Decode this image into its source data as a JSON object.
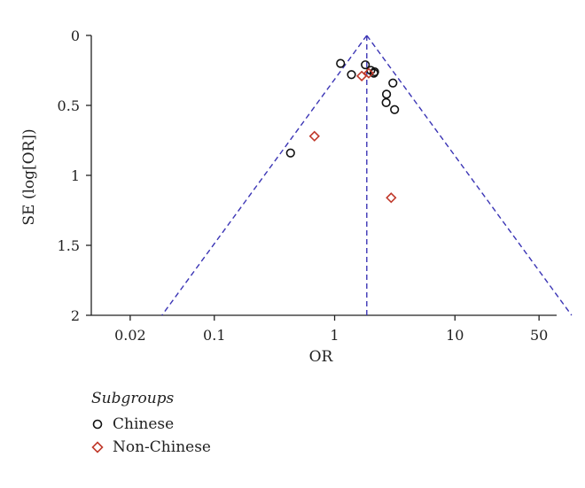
{
  "chart_data": {
    "type": "scatter",
    "title": "",
    "xlabel": "OR",
    "ylabel": "SE (log[OR])",
    "x_scale": "log",
    "xlim": [
      0.0095,
      70
    ],
    "ylim": [
      0,
      2
    ],
    "y_inverted": true,
    "x_ticks": [
      {
        "value": 0.02,
        "label": "0.02"
      },
      {
        "value": 0.1,
        "label": "0.1"
      },
      {
        "value": 1,
        "label": "1"
      },
      {
        "value": 10,
        "label": "10"
      },
      {
        "value": 50,
        "label": "50"
      }
    ],
    "y_ticks": [
      {
        "value": 0,
        "label": "0"
      },
      {
        "value": 0.5,
        "label": "0.5"
      },
      {
        "value": 1,
        "label": "1"
      },
      {
        "value": 1.5,
        "label": "1.5"
      },
      {
        "value": 2,
        "label": "2"
      }
    ],
    "pooled_or": 1.85,
    "funnel_color": "#3b35b5",
    "legend": {
      "title": "Subgroups",
      "placement": "bottom-left",
      "entries": [
        "Chinese",
        "Non-Chinese"
      ]
    },
    "series": [
      {
        "name": "Chinese",
        "marker": "circle",
        "color": "#111111",
        "points": [
          {
            "x": 1.12,
            "y": 0.2
          },
          {
            "x": 1.38,
            "y": 0.28
          },
          {
            "x": 1.8,
            "y": 0.21
          },
          {
            "x": 2.0,
            "y": 0.25
          },
          {
            "x": 2.12,
            "y": 0.27
          },
          {
            "x": 2.15,
            "y": 0.26
          },
          {
            "x": 3.05,
            "y": 0.34
          },
          {
            "x": 2.7,
            "y": 0.42
          },
          {
            "x": 2.68,
            "y": 0.48
          },
          {
            "x": 3.15,
            "y": 0.53
          },
          {
            "x": 0.43,
            "y": 0.84
          }
        ]
      },
      {
        "name": "Non-Chinese",
        "marker": "diamond",
        "color": "#c0392b",
        "points": [
          {
            "x": 1.68,
            "y": 0.29
          },
          {
            "x": 1.92,
            "y": 0.27
          },
          {
            "x": 0.68,
            "y": 0.72
          },
          {
            "x": 2.95,
            "y": 1.16
          }
        ]
      }
    ]
  }
}
